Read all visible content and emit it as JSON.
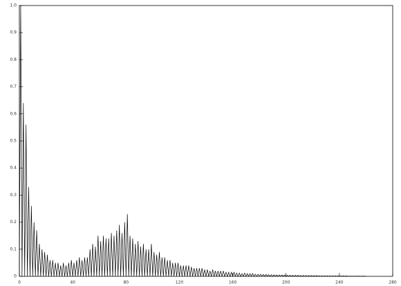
{
  "chart_data": {
    "type": "line",
    "color": "#000000",
    "xlim": [
      0,
      280
    ],
    "xticks": [
      0,
      40,
      80,
      120,
      160,
      200,
      240,
      280
    ],
    "ylim": [
      0,
      1
    ],
    "yticks": [
      0,
      0.1,
      0.2,
      0.3,
      0.4,
      0.5,
      0.6,
      0.7,
      0.8,
      0.9,
      {
        "value": 1,
        "label": "1.0"
      }
    ],
    "x": [
      0,
      1,
      2,
      3,
      4,
      5,
      6,
      7,
      8,
      9,
      10,
      11,
      12,
      13,
      14,
      15,
      16,
      17,
      18,
      19,
      20,
      21,
      22,
      23,
      24,
      25,
      26,
      27,
      28,
      29,
      30,
      31,
      32,
      33,
      34,
      35,
      36,
      37,
      38,
      39,
      40,
      41,
      42,
      43,
      44,
      45,
      46,
      47,
      48,
      49,
      50,
      51,
      52,
      53,
      54,
      55,
      56,
      57,
      58,
      59,
      60,
      61,
      62,
      63,
      64,
      65,
      66,
      67,
      68,
      69,
      70,
      71,
      72,
      73,
      74,
      75,
      76,
      77,
      78,
      79,
      80,
      81,
      82,
      83,
      84,
      85,
      86,
      87,
      88,
      89,
      90,
      91,
      92,
      93,
      94,
      95,
      96,
      97,
      98,
      99,
      100,
      101,
      102,
      103,
      104,
      105,
      106,
      107,
      108,
      109,
      110,
      111,
      112,
      113,
      114,
      115,
      116,
      117,
      118,
      119,
      120,
      121,
      122,
      123,
      124,
      125,
      126,
      127,
      128,
      129,
      130,
      131,
      132,
      133,
      134,
      135,
      136,
      137,
      138,
      139,
      140,
      141,
      142,
      143,
      144,
      145,
      146,
      147,
      148,
      149,
      150,
      151,
      152,
      153,
      154,
      155,
      156,
      157,
      158,
      159,
      160,
      161,
      162,
      163,
      164,
      165,
      166,
      167,
      168,
      169,
      170,
      171,
      172,
      173,
      174,
      175,
      176,
      177,
      178,
      179,
      180,
      181,
      182,
      183,
      184,
      185,
      186,
      187,
      188,
      189,
      190,
      191,
      192,
      193,
      194,
      195,
      196,
      197,
      198,
      199,
      200,
      201,
      202,
      203,
      204,
      205,
      206,
      207,
      208,
      209,
      210,
      211,
      212,
      213,
      214,
      215,
      216,
      217,
      218,
      219,
      220,
      221,
      222,
      223,
      224,
      225,
      226,
      227,
      228,
      229,
      230,
      231,
      232,
      233,
      234,
      235,
      236,
      237,
      238,
      239,
      240,
      241,
      242,
      243,
      244,
      245,
      246,
      247,
      248,
      249,
      250,
      251,
      252,
      253,
      254,
      255,
      256,
      257,
      258,
      259,
      260
    ],
    "values": [
      0,
      1.0,
      0,
      0.64,
      0,
      0.56,
      0,
      0.33,
      0,
      0.26,
      0,
      0.2,
      0,
      0.17,
      0,
      0.12,
      0,
      0.1,
      0,
      0.09,
      0,
      0.08,
      0,
      0.06,
      0,
      0.06,
      0,
      0.05,
      0,
      0.05,
      0,
      0.04,
      0,
      0.05,
      0,
      0.04,
      0,
      0.05,
      0,
      0.06,
      0,
      0.05,
      0,
      0.06,
      0,
      0.07,
      0,
      0.06,
      0,
      0.07,
      0,
      0.07,
      0,
      0.1,
      0,
      0.12,
      0,
      0.11,
      0,
      0.15,
      0,
      0.13,
      0,
      0.15,
      0,
      0.14,
      0,
      0.14,
      0,
      0.16,
      0,
      0.15,
      0,
      0.17,
      0,
      0.19,
      0,
      0.16,
      0,
      0.2,
      0,
      0.23,
      0,
      0.15,
      0,
      0.14,
      0,
      0.12,
      0,
      0.13,
      0,
      0.11,
      0,
      0.12,
      0,
      0.1,
      0,
      0.1,
      0,
      0.12,
      0,
      0.09,
      0,
      0.08,
      0,
      0.09,
      0,
      0.07,
      0,
      0.07,
      0,
      0.06,
      0,
      0.06,
      0,
      0.05,
      0,
      0.05,
      0,
      0.05,
      0,
      0.04,
      0,
      0.04,
      0,
      0.04,
      0,
      0.04,
      0,
      0.035,
      0,
      0.03,
      0,
      0.03,
      0,
      0.03,
      0,
      0.03,
      0,
      0.025,
      0,
      0.025,
      0,
      0.02,
      0,
      0.025,
      0,
      0.02,
      0,
      0.02,
      0,
      0.02,
      0,
      0.02,
      0,
      0.015,
      0,
      0.015,
      0,
      0.015,
      0,
      0.015,
      0,
      0.012,
      0,
      0.012,
      0,
      0.01,
      0,
      0.012,
      0,
      0.01,
      0,
      0.01,
      0,
      0.01,
      0,
      0.008,
      0,
      0.008,
      0,
      0.008,
      0,
      0.007,
      0,
      0.007,
      0,
      0.006,
      0,
      0.006,
      0,
      0.006,
      0,
      0.005,
      0,
      0.005,
      0,
      0.005,
      0,
      0.005,
      0,
      0.004,
      0,
      0.004,
      0,
      0.004,
      0,
      0.004,
      0,
      0.004,
      0,
      0.003,
      0,
      0.003,
      0,
      0.003,
      0,
      0.003,
      0,
      0.003,
      0,
      0.003,
      0,
      0.003,
      0,
      0.002,
      0,
      0.002,
      0,
      0.002,
      0,
      0.002,
      0,
      0.002,
      0,
      0.002,
      0,
      0.002,
      0,
      0.002,
      0,
      0.002,
      0,
      0.002,
      0,
      0.002,
      0,
      0.001,
      0,
      0.001,
      0,
      0.001,
      0,
      0.001,
      0,
      0.001,
      0,
      0.001,
      0,
      0.001,
      0
    ]
  }
}
